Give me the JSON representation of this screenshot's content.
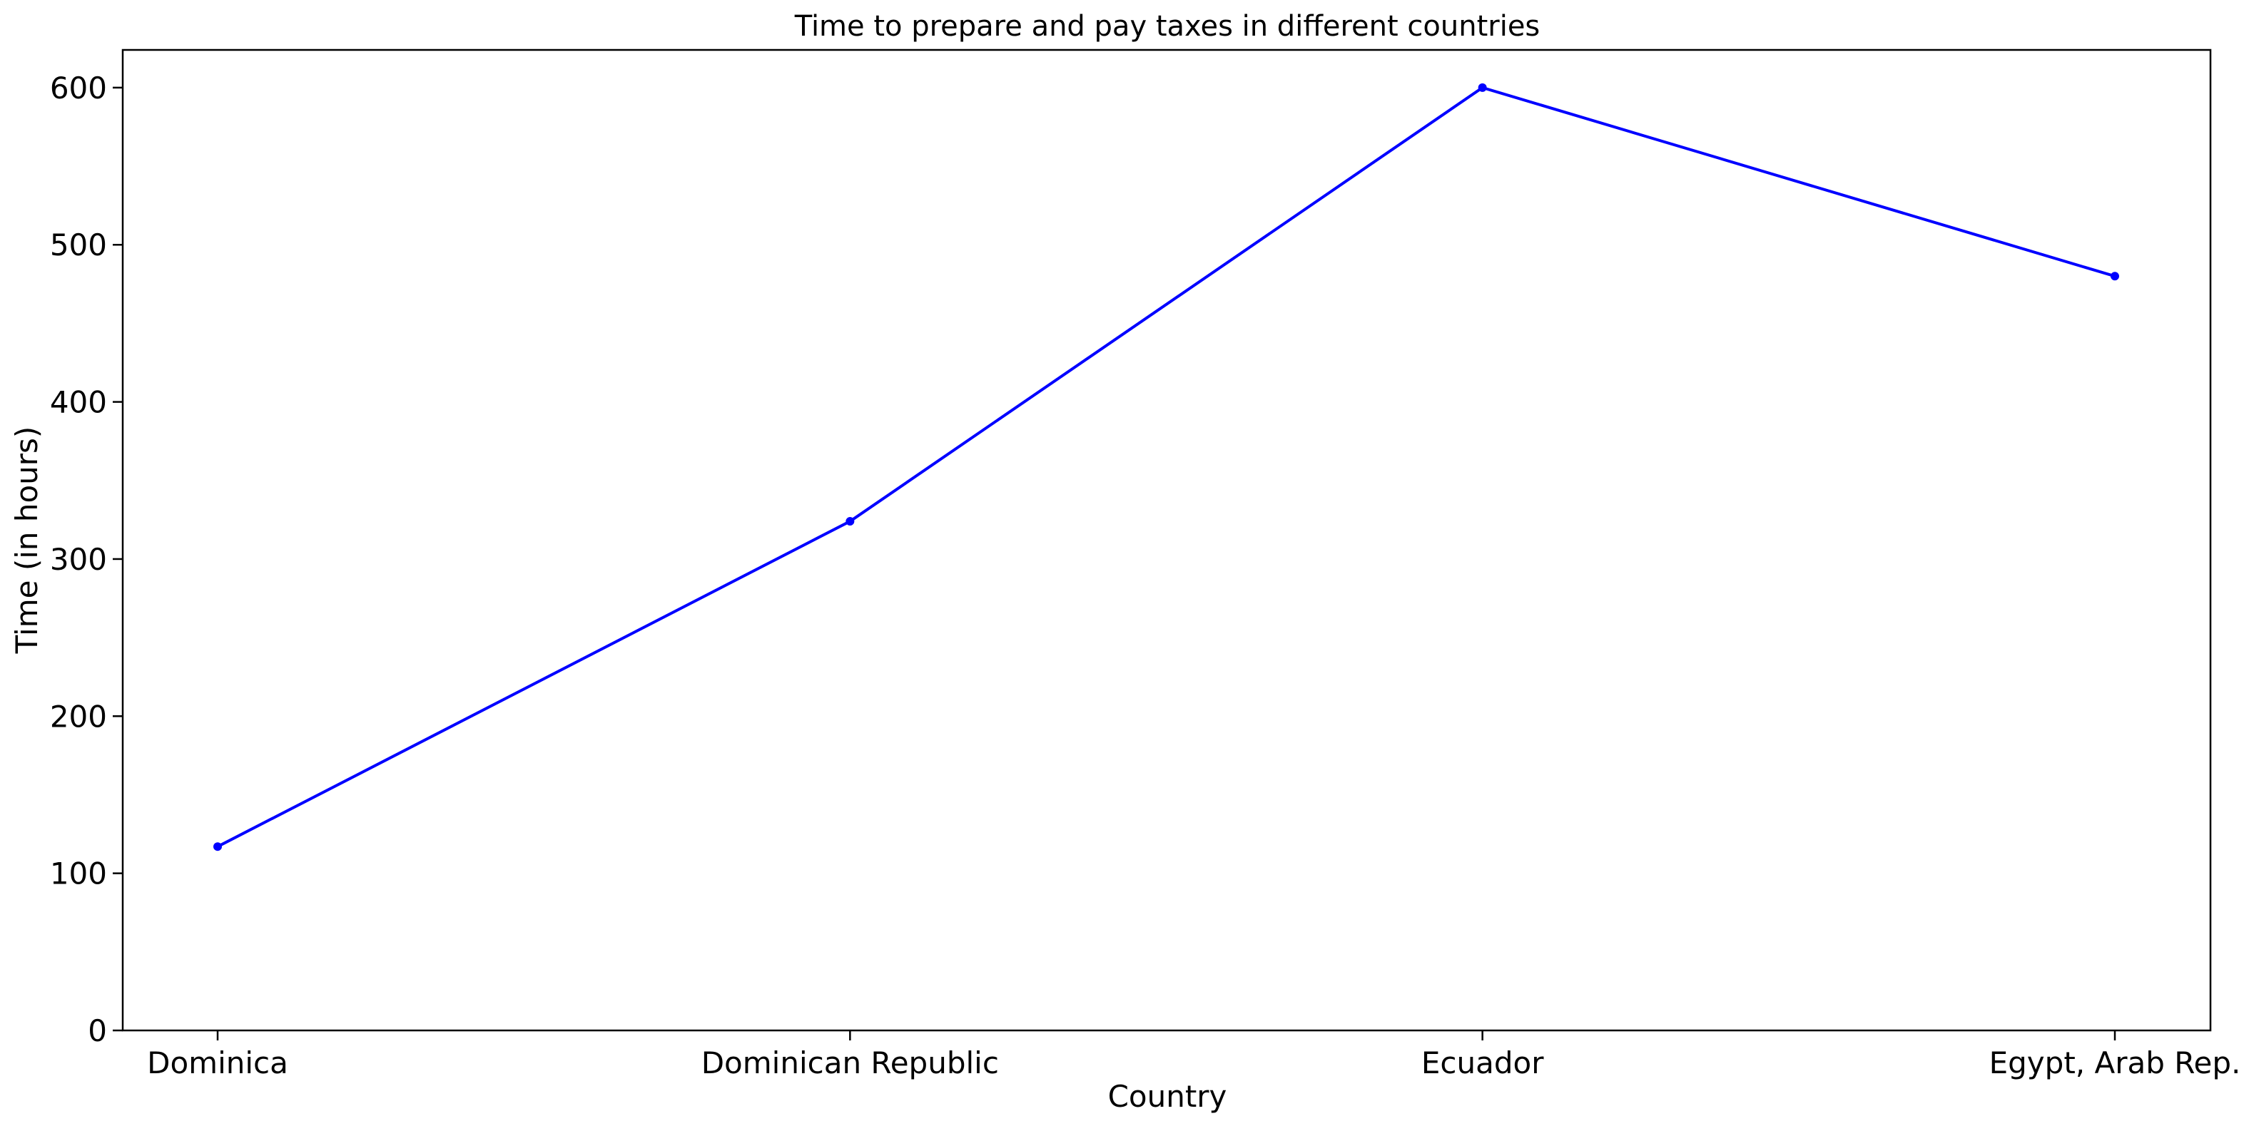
{
  "chart_data": {
    "type": "line",
    "title": "Time to prepare and pay taxes in different countries",
    "xlabel": "Country",
    "ylabel": "Time (in hours)",
    "categories": [
      "Dominica",
      "Dominican Republic",
      "Ecuador",
      "Egypt, Arab Rep."
    ],
    "series": [
      {
        "values": [
          117,
          324,
          600,
          480
        ],
        "color": "#0000ff",
        "marker": "circle"
      }
    ],
    "ylim": [
      0,
      624
    ],
    "yticks": [
      0,
      100,
      200,
      300,
      400,
      500,
      600
    ],
    "grid": false,
    "legend": "none"
  }
}
